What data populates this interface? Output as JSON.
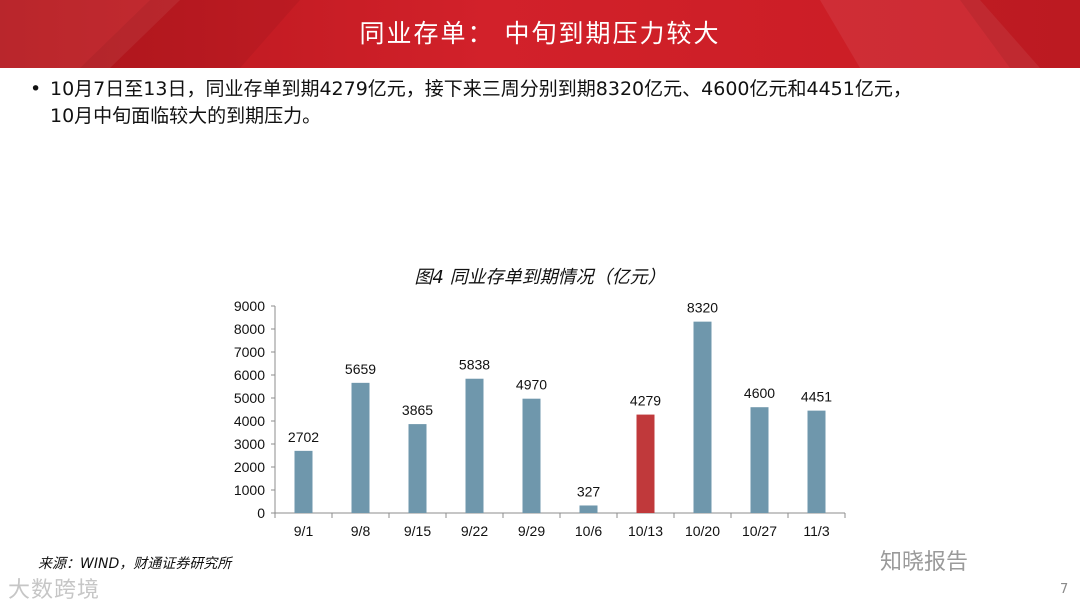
{
  "header": {
    "title": "同业存单： 中旬到期压力较大"
  },
  "bullets": [
    {
      "line1": "10月7日至13日，同业存单到期4279亿元，接下来三周分别到期8320亿元、4600亿元和4451亿元，",
      "line2": "10月中旬面临较大的到期压力。"
    }
  ],
  "chart_data": {
    "type": "bar",
    "title": "图4 同业存单到期情况（亿元）",
    "categories": [
      "9/1",
      "9/8",
      "9/15",
      "9/22",
      "9/29",
      "10/6",
      "10/13",
      "10/20",
      "10/27",
      "11/3"
    ],
    "values": [
      2702,
      5659,
      3865,
      5838,
      4970,
      327,
      4279,
      8320,
      4600,
      4451
    ],
    "highlight_index": 6,
    "ylim": [
      0,
      9000
    ],
    "yticks": [
      0,
      1000,
      2000,
      3000,
      4000,
      5000,
      6000,
      7000,
      8000,
      9000
    ],
    "colors": {
      "bar": "#6f97ac",
      "highlight": "#c0393b"
    },
    "grid": false
  },
  "source": "来源：WIND，财通证券研究所",
  "watermarks": {
    "right": "知晓报告",
    "left": "大数跨境"
  },
  "page_number": "7"
}
